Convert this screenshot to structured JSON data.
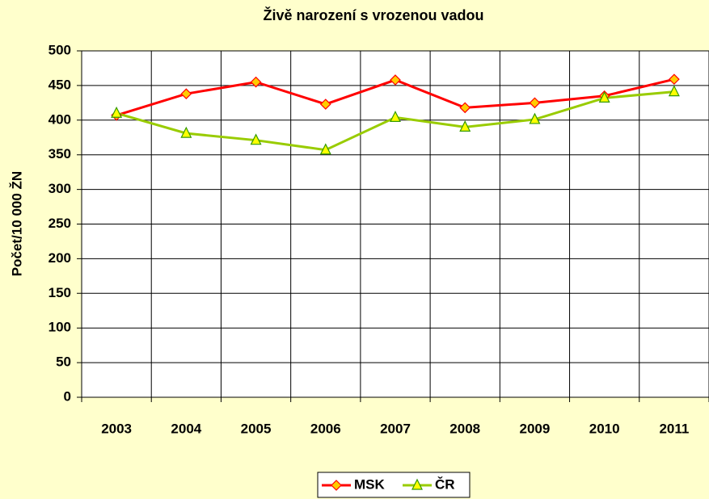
{
  "chart_data": {
    "type": "line",
    "title": "Živě narození s vrozenou vadou",
    "y_label": "Počet/10 000 ŽN",
    "categories": [
      "2003",
      "2004",
      "2005",
      "2006",
      "2007",
      "2008",
      "2009",
      "2010",
      "2011"
    ],
    "series": [
      {
        "name": "MSK",
        "color": "#ff0000",
        "marker": "diamond",
        "values": [
          407,
          438,
          455,
          423,
          458,
          418,
          425,
          435,
          459
        ]
      },
      {
        "name": "ČR",
        "color": "#99cc00",
        "marker": "triangle",
        "values": [
          410,
          381,
          371,
          357,
          404,
          390,
          401,
          432,
          441
        ]
      }
    ],
    "ylim": [
      0,
      500
    ],
    "yticks": [
      0,
      50,
      100,
      150,
      200,
      250,
      300,
      350,
      400,
      450,
      500
    ],
    "grid": true,
    "legend": "bottom"
  }
}
